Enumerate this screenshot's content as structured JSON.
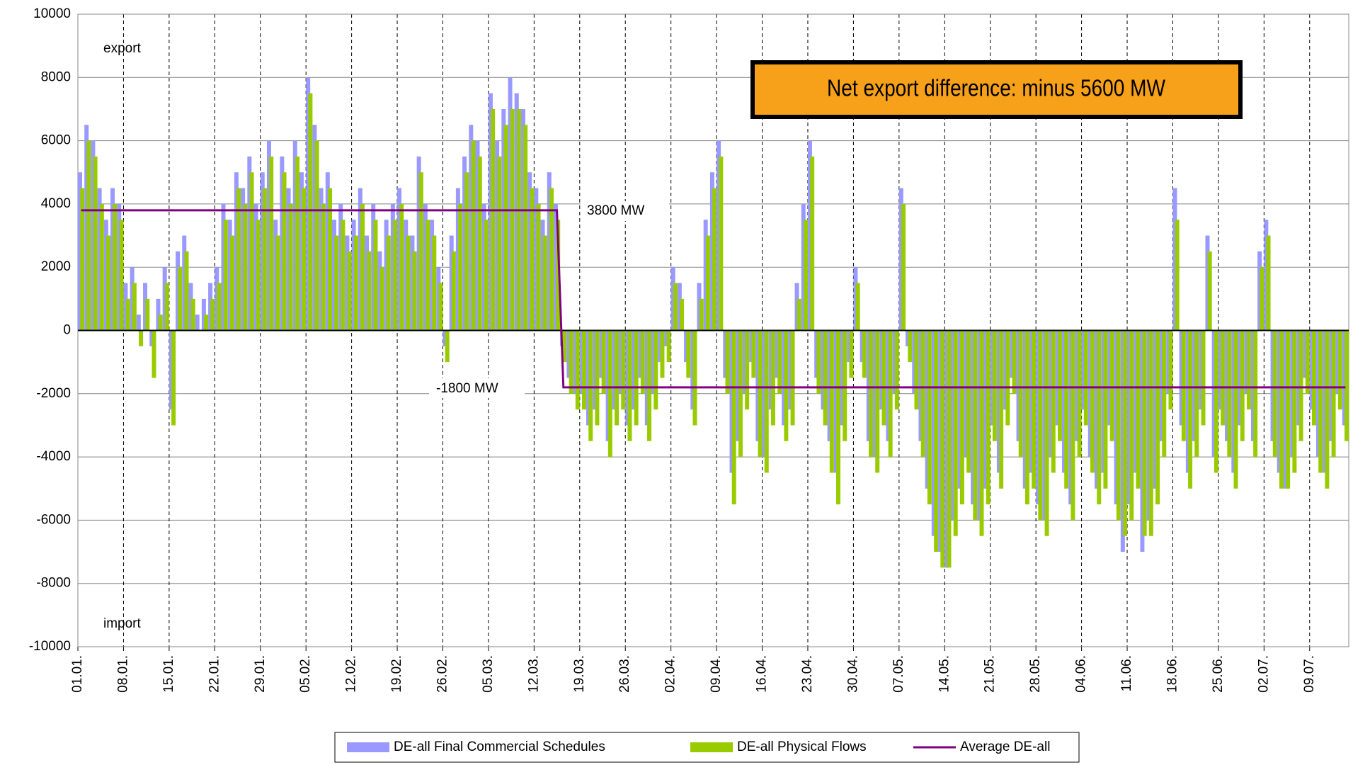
{
  "chart_data": {
    "type": "bar",
    "annotations": {
      "export": "export",
      "import": "import",
      "box": "Net export difference: minus 5600 MW",
      "high": "3800 MW",
      "low": "-1800 MW"
    },
    "categories": [
      "01.01.",
      null,
      null,
      null,
      null,
      null,
      null,
      "08.01.",
      null,
      null,
      null,
      null,
      null,
      null,
      "15.01.",
      null,
      null,
      null,
      null,
      null,
      null,
      "22.01.",
      null,
      null,
      null,
      null,
      null,
      null,
      "29.01.",
      null,
      null,
      null,
      null,
      null,
      null,
      "05.02.",
      null,
      null,
      null,
      null,
      null,
      null,
      "12.02.",
      null,
      null,
      null,
      null,
      null,
      null,
      "19.02.",
      null,
      null,
      null,
      null,
      null,
      null,
      "26.02.",
      null,
      null,
      null,
      null,
      null,
      null,
      "05.03.",
      null,
      null,
      null,
      null,
      null,
      null,
      "12.03.",
      null,
      null,
      null,
      null,
      null,
      null,
      "19.03.",
      null,
      null,
      null,
      null,
      null,
      null,
      "26.03.",
      null,
      null,
      null,
      null,
      null,
      null,
      "02.04.",
      null,
      null,
      null,
      null,
      null,
      null,
      "09.04.",
      null,
      null,
      null,
      null,
      null,
      null,
      "16.04.",
      null,
      null,
      null,
      null,
      null,
      null,
      "23.04.",
      null,
      null,
      null,
      null,
      null,
      null,
      "30.04.",
      null,
      null,
      null,
      null,
      null,
      null,
      "07.05.",
      null,
      null,
      null,
      null,
      null,
      null,
      "14.05.",
      null,
      null,
      null,
      null,
      null,
      null,
      "21.05.",
      null,
      null,
      null,
      null,
      null,
      null,
      "28.05.",
      null,
      null,
      null,
      null,
      null,
      null,
      "04.06.",
      null,
      null,
      null,
      null,
      null,
      null,
      "11.06.",
      null,
      null,
      null,
      null,
      null,
      null,
      "18.06.",
      null,
      null,
      null,
      null,
      null,
      null,
      "25.06.",
      null,
      null,
      null,
      null,
      null,
      null,
      "02.07.",
      null,
      null,
      null,
      null,
      null,
      null,
      "09.07.",
      null,
      null,
      null,
      null,
      null
    ],
    "series": [
      {
        "name": "DE-all Final Commercial Schedules",
        "color": "#9999ff",
        "kind": "bar",
        "values": [
          5000,
          6500,
          6000,
          4500,
          3500,
          4500,
          4000,
          1500,
          2000,
          500,
          1500,
          -500,
          1000,
          2000,
          -2500,
          2500,
          3000,
          1500,
          500,
          1000,
          1500,
          2000,
          4000,
          3500,
          5000,
          4500,
          5500,
          4000,
          5000,
          6000,
          3500,
          5500,
          4500,
          6000,
          5000,
          8000,
          6500,
          4500,
          5000,
          3500,
          4000,
          3000,
          3500,
          4500,
          3000,
          4000,
          2500,
          3500,
          4000,
          4500,
          3500,
          3000,
          5500,
          4000,
          3500,
          2000,
          -500,
          3000,
          4500,
          5500,
          6500,
          6000,
          4000,
          7500,
          6000,
          7000,
          8000,
          7500,
          7000,
          5000,
          4500,
          3500,
          5000,
          4000,
          -500,
          -1500,
          -2000,
          -2000,
          -3000,
          -2500,
          -1500,
          -3500,
          -2500,
          -2000,
          -3000,
          -2500,
          -1500,
          -3000,
          -2000,
          -1000,
          -500,
          2000,
          1500,
          -1000,
          -2500,
          1500,
          3500,
          5000,
          6000,
          -1500,
          -4500,
          -3500,
          -2000,
          -1000,
          -3500,
          -4000,
          -2500,
          -1500,
          -3000,
          -2500,
          1500,
          4000,
          6000,
          -1500,
          -2500,
          -3500,
          -4500,
          -3000,
          -1000,
          2000,
          -1000,
          -3500,
          -4000,
          -2500,
          -3500,
          -2000,
          4500,
          -500,
          -2000,
          -3500,
          -5000,
          -6500,
          -7000,
          -7500,
          -6000,
          -5000,
          -4000,
          -5500,
          -6000,
          -5000,
          -3000,
          -4500,
          -2500,
          -1500,
          -3500,
          -5000,
          -4500,
          -5500,
          -6000,
          -4000,
          -3000,
          -4500,
          -5500,
          -3500,
          -2500,
          -4000,
          -5000,
          -4500,
          -3000,
          -5500,
          -7000,
          -5500,
          -4500,
          -7000,
          -6000,
          -5000,
          -3500,
          -2000,
          4500,
          -3000,
          -4500,
          -3500,
          -2500,
          3000,
          -4000,
          -2500,
          -3500,
          -4500,
          -3000,
          -2000,
          -3500,
          2500,
          3500,
          -3500,
          -4500,
          -5000,
          -4000,
          -3000,
          -1500,
          -2500,
          -4000,
          -4500,
          -3500,
          -2000,
          -3000
        ]
      },
      {
        "name": "DE-all Physical Flows",
        "color": "#99cc00",
        "kind": "bar",
        "values": [
          4500,
          6000,
          5500,
          4000,
          3000,
          4000,
          3500,
          1000,
          1500,
          -500,
          1000,
          -1500,
          500,
          1500,
          -3000,
          2000,
          2500,
          1000,
          0,
          500,
          1000,
          1500,
          3500,
          3000,
          4500,
          4000,
          5000,
          3500,
          4500,
          5500,
          3000,
          5000,
          4000,
          5500,
          4500,
          7500,
          6000,
          4000,
          4500,
          3000,
          3500,
          2500,
          3000,
          4000,
          2500,
          3500,
          2000,
          3000,
          3500,
          4000,
          3000,
          2500,
          5000,
          3500,
          3000,
          1500,
          -1000,
          2500,
          4000,
          5000,
          6000,
          5500,
          3500,
          7000,
          5500,
          6500,
          7000,
          7000,
          6500,
          4500,
          4000,
          3000,
          4500,
          3500,
          -1000,
          -2000,
          -2500,
          -2500,
          -3500,
          -3000,
          -2000,
          -4000,
          -3000,
          -2500,
          -3500,
          -3000,
          -2000,
          -3500,
          -2500,
          -1500,
          -1000,
          1500,
          1000,
          -1500,
          -3000,
          1000,
          3000,
          4500,
          5500,
          -2000,
          -5500,
          -4000,
          -2500,
          -1500,
          -4000,
          -4500,
          -3000,
          -2000,
          -3500,
          -3000,
          1000,
          3500,
          5500,
          -2000,
          -3000,
          -4500,
          -5500,
          -3500,
          -1500,
          1500,
          -1500,
          -4000,
          -4500,
          -3000,
          -4000,
          -2500,
          4000,
          -1000,
          -2500,
          -4000,
          -5500,
          -7000,
          -7500,
          -7500,
          -6500,
          -5500,
          -4500,
          -6000,
          -6500,
          -5500,
          -3500,
          -5000,
          -3000,
          -2000,
          -4000,
          -5500,
          -5000,
          -6000,
          -6500,
          -4500,
          -3500,
          -5000,
          -6000,
          -4000,
          -3000,
          -4500,
          -5500,
          -5000,
          -3500,
          -6000,
          -6500,
          -6000,
          -5000,
          -6500,
          -6500,
          -5500,
          -4000,
          -2500,
          3500,
          -3500,
          -5000,
          -4000,
          -3000,
          2500,
          -4500,
          -3000,
          -4000,
          -5000,
          -3500,
          -2500,
          -4000,
          2000,
          3000,
          -4000,
          -5000,
          -5000,
          -4500,
          -3500,
          -2000,
          -3000,
          -4500,
          -5000,
          -4000,
          -2500,
          -3500
        ]
      },
      {
        "name": "Average DE-all",
        "color": "#800080",
        "kind": "line",
        "values": [
          3800,
          3800,
          3800,
          3800,
          3800,
          3800,
          3800,
          3800,
          3800,
          3800,
          3800,
          3800,
          3800,
          3800,
          3800,
          3800,
          3800,
          3800,
          3800,
          3800,
          3800,
          3800,
          3800,
          3800,
          3800,
          3800,
          3800,
          3800,
          3800,
          3800,
          3800,
          3800,
          3800,
          3800,
          3800,
          3800,
          3800,
          3800,
          3800,
          3800,
          3800,
          3800,
          3800,
          3800,
          3800,
          3800,
          3800,
          3800,
          3800,
          3800,
          3800,
          3800,
          3800,
          3800,
          3800,
          3800,
          3800,
          3800,
          3800,
          3800,
          3800,
          3800,
          3800,
          3800,
          3800,
          3800,
          3800,
          3800,
          3800,
          3800,
          3800,
          3800,
          3800,
          3800,
          -1800,
          -1800,
          -1800,
          -1800,
          -1800,
          -1800,
          -1800,
          -1800,
          -1800,
          -1800,
          -1800,
          -1800,
          -1800,
          -1800,
          -1800,
          -1800,
          -1800,
          -1800,
          -1800,
          -1800,
          -1800,
          -1800,
          -1800,
          -1800,
          -1800,
          -1800,
          -1800,
          -1800,
          -1800,
          -1800,
          -1800,
          -1800,
          -1800,
          -1800,
          -1800,
          -1800,
          -1800,
          -1800,
          -1800,
          -1800,
          -1800,
          -1800,
          -1800,
          -1800,
          -1800,
          -1800,
          -1800,
          -1800,
          -1800,
          -1800,
          -1800,
          -1800,
          -1800,
          -1800,
          -1800,
          -1800,
          -1800,
          -1800,
          -1800,
          -1800,
          -1800,
          -1800,
          -1800,
          -1800,
          -1800,
          -1800,
          -1800,
          -1800,
          -1800,
          -1800,
          -1800,
          -1800,
          -1800,
          -1800,
          -1800,
          -1800,
          -1800,
          -1800,
          -1800,
          -1800,
          -1800,
          -1800,
          -1800,
          -1800,
          -1800,
          -1800,
          -1800,
          -1800,
          -1800,
          -1800,
          -1800,
          -1800,
          -1800,
          -1800,
          -1800,
          -1800,
          -1800,
          -1800,
          -1800,
          -1800,
          -1800,
          -1800,
          -1800,
          -1800,
          -1800,
          -1800,
          -1800,
          -1800,
          -1800,
          -1800,
          -1800,
          -1800,
          -1800,
          -1800,
          -1800,
          -1800,
          -1800,
          -1800,
          -1800,
          -1800,
          -1800
        ]
      }
    ],
    "ylim": [
      -10000,
      10000
    ],
    "yticks": [
      -10000,
      -8000,
      -6000,
      -4000,
      -2000,
      0,
      2000,
      4000,
      6000,
      8000,
      10000
    ],
    "grid": true,
    "legend": "bottom"
  }
}
